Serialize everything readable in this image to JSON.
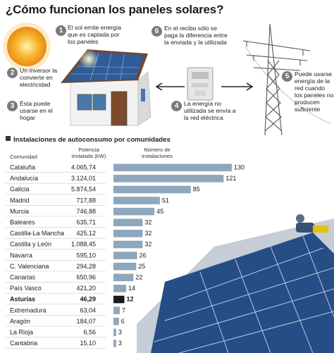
{
  "title": "¿Cómo funcionan los paneles solares?",
  "steps": [
    {
      "num": "1",
      "text": "El sol emite energía que es captada por los paneles"
    },
    {
      "num": "2",
      "text": "Un inversor la convierte en electricidad"
    },
    {
      "num": "3",
      "text": "Ésta puede usarse en el hogar"
    },
    {
      "num": "4",
      "text": "La energía no utilizada se envía a la red eléctrica"
    },
    {
      "num": "5",
      "text": "Puede usarse energía de la red cuando los paneles no producen suficiente"
    },
    {
      "num": "6",
      "text": "En el recibo sólo se paga la diferencia entre la enviada y la utilizada"
    }
  ],
  "chart_data": {
    "type": "bar",
    "title": "Instalaciones de autoconsumo por comunidades",
    "columns": [
      "Comunidad",
      "Potencia instalada (kW)",
      "Número de instalaciones"
    ],
    "categories": [
      "Cataluña",
      "Andalucía",
      "Galicia",
      "Madrid",
      "Murcia",
      "Baleares",
      "Castilla-La Mancha",
      "Castilla y León",
      "Navarra",
      "C. Valenciana",
      "Canarias",
      "País Vasco",
      "Asturias",
      "Extremadura",
      "Aragón",
      "La Rioja",
      "Cantabria"
    ],
    "potencia": [
      "4.065,74",
      "3.124,01",
      "5.874,54",
      "717,88",
      "746,88",
      "635,71",
      "425,12",
      "1.088,45",
      "595,10",
      "294,28",
      "650,96",
      "421,20",
      "46,29",
      "63,04",
      "184,07",
      "6,56",
      "15,10"
    ],
    "values": [
      130,
      121,
      85,
      51,
      45,
      32,
      32,
      32,
      26,
      25,
      22,
      14,
      12,
      7,
      6,
      3,
      3
    ],
    "highlight": "Asturias",
    "bar_color": "#8ea7bd",
    "highlight_color": "#1a1a1a"
  }
}
